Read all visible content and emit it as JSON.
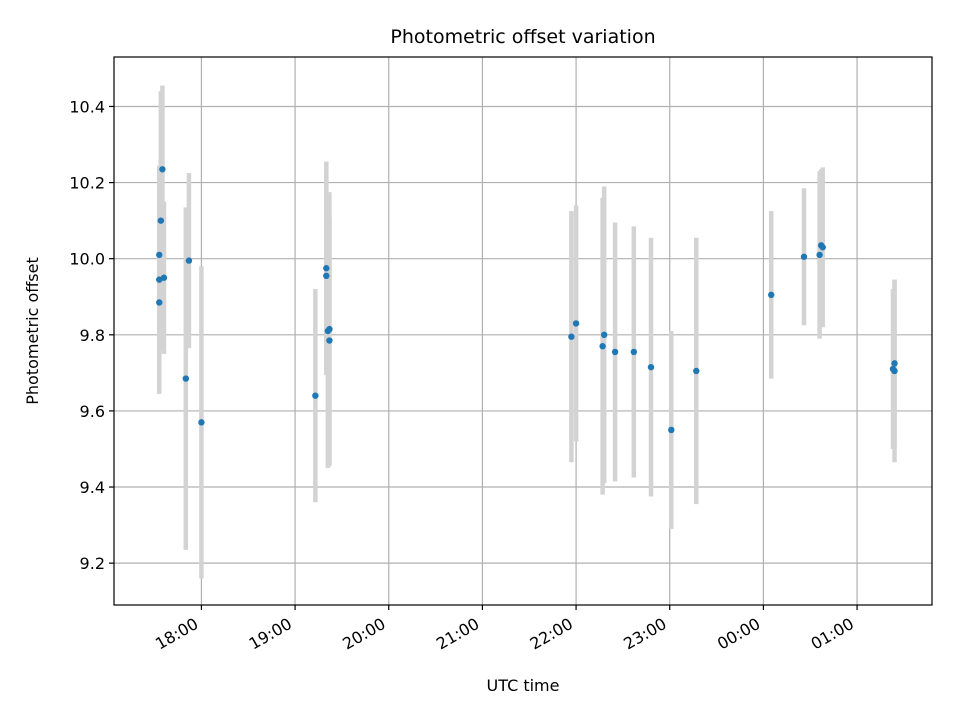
{
  "chart_data": {
    "type": "scatter",
    "title": "Photometric offset variation",
    "xlabel": "UTC time",
    "ylabel": "Photometric offset",
    "grid": true,
    "legend": "none",
    "x_tick_labels": [
      "18:00",
      "19:00",
      "20:00",
      "21:00",
      "22:00",
      "23:00",
      "00:00",
      "01:00"
    ],
    "x_tick_values": [
      "18:00",
      "19:00",
      "20:00",
      "21:00",
      "22:00",
      "23:00",
      "00:00",
      "01:00"
    ],
    "y_ticks": [
      9.2,
      9.4,
      9.6,
      9.8,
      10.0,
      10.2,
      10.4
    ],
    "y_tick_labels": [
      "9.2",
      "9.4",
      "9.6",
      "9.8",
      "10.0",
      "10.2",
      "10.4"
    ],
    "xlim": [
      "17:04",
      "01:48"
    ],
    "ylim": [
      9.09,
      10.53
    ],
    "colors": {
      "point": "#1f77b4",
      "errorbar": "#d3d3d3",
      "grid": "#b0b0b0"
    },
    "series": [
      {
        "x": [
          "17:33",
          "17:33",
          "17:33",
          "17:34",
          "17:35",
          "17:36",
          "17:50",
          "17:52",
          "18:00",
          "19:13",
          "19:20",
          "19:20",
          "19:21",
          "19:22",
          "19:22",
          "21:57",
          "22:00",
          "22:17",
          "22:18",
          "22:25",
          "22:37",
          "22:48",
          "23:01",
          "23:17",
          "00:05",
          "00:26",
          "00:36",
          "00:37",
          "00:38",
          "01:23",
          "01:24",
          "01:24"
        ],
        "y": [
          9.885,
          9.945,
          10.01,
          10.1,
          10.235,
          9.95,
          9.685,
          9.995,
          9.57,
          9.64,
          9.975,
          9.955,
          9.81,
          9.815,
          9.785,
          9.795,
          9.83,
          9.77,
          9.8,
          9.755,
          9.755,
          9.715,
          9.55,
          9.705,
          9.905,
          10.005,
          10.01,
          10.035,
          10.03,
          9.71,
          9.725,
          9.705
        ],
        "yerr": [
          0.24,
          0.3,
          0.23,
          0.34,
          0.22,
          0.2,
          0.45,
          0.23,
          0.41,
          0.28,
          0.28,
          0.26,
          0.36,
          0.36,
          0.32,
          0.33,
          0.31,
          0.39,
          0.39,
          0.34,
          0.33,
          0.34,
          0.26,
          0.35,
          0.22,
          0.18,
          0.22,
          0.2,
          0.21,
          0.21,
          0.22,
          0.24
        ]
      }
    ]
  }
}
